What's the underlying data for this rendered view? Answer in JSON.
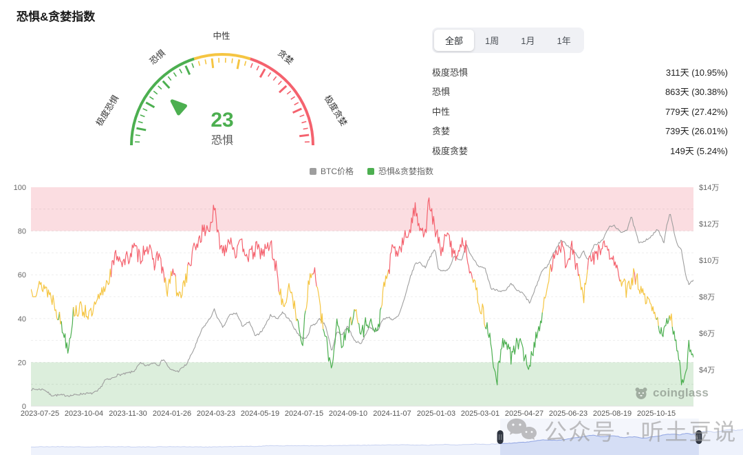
{
  "page": {
    "title": "恐惧&贪婪指数"
  },
  "gauge": {
    "value": 23,
    "value_label": "恐惧",
    "value_color": "#4CAF50",
    "labels": [
      "极度恐惧",
      "恐惧",
      "中性",
      "贪婪",
      "极度贪婪"
    ],
    "segments": [
      {
        "from": 0,
        "to": 40,
        "color": "#4CAF50"
      },
      {
        "from": 40,
        "to": 60,
        "color": "#F5C542"
      },
      {
        "from": 60,
        "to": 100,
        "color": "#F4626E"
      }
    ]
  },
  "stats": {
    "tabs": [
      {
        "label": "全部",
        "active": true
      },
      {
        "label": "1周",
        "active": false
      },
      {
        "label": "1月",
        "active": false
      },
      {
        "label": "1年",
        "active": false
      }
    ],
    "rows": [
      {
        "label": "极度恐惧",
        "value": "311天 (10.95%)"
      },
      {
        "label": "恐惧",
        "value": "863天 (30.38%)"
      },
      {
        "label": "中性",
        "value": "779天 (27.42%)"
      },
      {
        "label": "贪婪",
        "value": "739天 (26.01%)"
      },
      {
        "label": "极度贪婪",
        "value": "149天 (5.24%)"
      }
    ]
  },
  "legend": {
    "items": [
      {
        "label": "BTC价格",
        "color": "#9E9E9E"
      },
      {
        "label": "恐惧&贪婪指数",
        "color": "#4CAF50"
      }
    ]
  },
  "watermarks": {
    "coinglass": "coinglass",
    "wechat": "公众号 · 听土豆说"
  },
  "chart_data": {
    "type": "line",
    "title": "恐惧&贪婪指数 / BTC价格",
    "x_labels": [
      "2023-07-25",
      "2023-10-04",
      "2023-11-30",
      "2024-01-26",
      "2024-03-23",
      "2024-05-19",
      "2024-07-15",
      "2024-09-10",
      "2024-11-07",
      "2025-01-03",
      "2025-03-01",
      "2025-04-27",
      "2025-06-23",
      "2025-08-19",
      "2025-10-15"
    ],
    "left_axis": {
      "ticks": [
        0,
        20,
        40,
        60,
        80,
        100
      ],
      "range": [
        0,
        100
      ],
      "grid": "dashed"
    },
    "right_axis": {
      "range_wan": [
        2,
        14
      ],
      "ticks": [
        {
          "label": "$14万",
          "wan": 14
        },
        {
          "label": "$12万",
          "wan": 12
        },
        {
          "label": "$10万",
          "wan": 10
        },
        {
          "label": "$8万",
          "wan": 8
        },
        {
          "label": "$6万",
          "wan": 6
        },
        {
          "label": "$4万",
          "wan": 4
        }
      ]
    },
    "bands": [
      {
        "from": 80,
        "to": 100,
        "color": "#FBDDE1"
      },
      {
        "from": 0,
        "to": 20,
        "color": "#DCEEDC"
      }
    ],
    "series": [
      {
        "name": "BTC价格",
        "axis": "right",
        "color": "#9E9E9E",
        "unit": "万USD",
        "noise": 0.06,
        "keyframes": [
          [
            0,
            2.92
          ],
          [
            0.02,
            2.92
          ],
          [
            0.03,
            2.6
          ],
          [
            0.046,
            2.6
          ],
          [
            0.06,
            2.58
          ],
          [
            0.082,
            2.7
          ],
          [
            0.09,
            2.68
          ],
          [
            0.1,
            2.8
          ],
          [
            0.105,
            3.0
          ],
          [
            0.112,
            3.45
          ],
          [
            0.119,
            3.45
          ],
          [
            0.13,
            3.7
          ],
          [
            0.14,
            3.75
          ],
          [
            0.155,
            3.9
          ],
          [
            0.165,
            4.35
          ],
          [
            0.175,
            4.2
          ],
          [
            0.185,
            4.4
          ],
          [
            0.193,
            4.25
          ],
          [
            0.2,
            4.6
          ],
          [
            0.21,
            4.0
          ],
          [
            0.222,
            3.9
          ],
          [
            0.235,
            4.3
          ],
          [
            0.247,
            5.2
          ],
          [
            0.258,
            6.2
          ],
          [
            0.27,
            6.8
          ],
          [
            0.277,
            7.3
          ],
          [
            0.282,
            6.8
          ],
          [
            0.29,
            6.3
          ],
          [
            0.3,
            7.0
          ],
          [
            0.31,
            7.1
          ],
          [
            0.319,
            6.4
          ],
          [
            0.33,
            6.6
          ],
          [
            0.339,
            5.8
          ],
          [
            0.35,
            6.2
          ],
          [
            0.362,
            7.0
          ],
          [
            0.372,
            6.8
          ],
          [
            0.38,
            7.15
          ],
          [
            0.393,
            6.6
          ],
          [
            0.4,
            6.1
          ],
          [
            0.41,
            5.7
          ],
          [
            0.417,
            5.8
          ],
          [
            0.423,
            6.4
          ],
          [
            0.429,
            6.5
          ],
          [
            0.436,
            6.8
          ],
          [
            0.445,
            6.4
          ],
          [
            0.454,
            4.95
          ],
          [
            0.462,
            6.1
          ],
          [
            0.47,
            5.9
          ],
          [
            0.478,
            6.4
          ],
          [
            0.488,
            5.6
          ],
          [
            0.498,
            5.4
          ],
          [
            0.51,
            6.3
          ],
          [
            0.523,
            6.1
          ],
          [
            0.53,
            6.7
          ],
          [
            0.54,
            6.9
          ],
          [
            0.546,
            6.7
          ],
          [
            0.555,
            6.95
          ],
          [
            0.565,
            8.0
          ],
          [
            0.571,
            8.9
          ],
          [
            0.58,
            9.8
          ],
          [
            0.586,
            9.9
          ],
          [
            0.595,
            9.6
          ],
          [
            0.601,
            10.1
          ],
          [
            0.61,
            10.6
          ],
          [
            0.615,
            9.5
          ],
          [
            0.619,
            9.4
          ],
          [
            0.63,
            9.5
          ],
          [
            0.639,
            10.2
          ],
          [
            0.65,
            10.0
          ],
          [
            0.657,
            10.9
          ],
          [
            0.665,
            10.2
          ],
          [
            0.676,
            9.6
          ],
          [
            0.685,
            9.6
          ],
          [
            0.695,
            8.4
          ],
          [
            0.702,
            8.4
          ],
          [
            0.71,
            8.3
          ],
          [
            0.716,
            8.3
          ],
          [
            0.725,
            8.7
          ],
          [
            0.735,
            8.3
          ],
          [
            0.742,
            8.2
          ],
          [
            0.753,
            7.65
          ],
          [
            0.762,
            8.5
          ],
          [
            0.771,
            9.4
          ],
          [
            0.78,
            9.7
          ],
          [
            0.789,
            10.4
          ],
          [
            0.8,
            11.1
          ],
          [
            0.807,
            10.9
          ],
          [
            0.817,
            10.6
          ],
          [
            0.827,
            10.1
          ],
          [
            0.834,
            10.5
          ],
          [
            0.841,
            10.0
          ],
          [
            0.85,
            10.8
          ],
          [
            0.863,
            11.1
          ],
          [
            0.872,
            11.8
          ],
          [
            0.881,
            11.9
          ],
          [
            0.89,
            11.5
          ],
          [
            0.9,
            11.7
          ],
          [
            0.906,
            12.4
          ],
          [
            0.918,
            10.9
          ],
          [
            0.927,
            11.1
          ],
          [
            0.937,
            11.3
          ],
          [
            0.945,
            11.7
          ],
          [
            0.95,
            11.4
          ],
          [
            0.955,
            10.9
          ],
          [
            0.96,
            12.0
          ],
          [
            0.965,
            12.6
          ],
          [
            0.973,
            11.1
          ],
          [
            0.982,
            10.5
          ],
          [
            0.988,
            9.2
          ],
          [
            0.993,
            8.7
          ],
          [
            1,
            8.95
          ]
        ]
      },
      {
        "name": "恐惧&贪婪指数",
        "axis": "left",
        "color_by_value": true,
        "noise": 3.8,
        "thresholds": {
          "fear": 40,
          "greed": 60
        },
        "colors": {
          "fear": "#4CAF50",
          "neutral": "#F5C542",
          "greed": "#F4626E"
        },
        "keyframes": [
          [
            0,
            53
          ],
          [
            0.02,
            55
          ],
          [
            0.035,
            48
          ],
          [
            0.046,
            37
          ],
          [
            0.056,
            27
          ],
          [
            0.065,
            44
          ],
          [
            0.082,
            44
          ],
          [
            0.09,
            41
          ],
          [
            0.1,
            47
          ],
          [
            0.105,
            50
          ],
          [
            0.119,
            60
          ],
          [
            0.13,
            70
          ],
          [
            0.14,
            65
          ],
          [
            0.155,
            72
          ],
          [
            0.165,
            68
          ],
          [
            0.175,
            74
          ],
          [
            0.185,
            65
          ],
          [
            0.193,
            70
          ],
          [
            0.205,
            52
          ],
          [
            0.215,
            63
          ],
          [
            0.222,
            48
          ],
          [
            0.235,
            60
          ],
          [
            0.247,
            72
          ],
          [
            0.258,
            79
          ],
          [
            0.27,
            82
          ],
          [
            0.277,
            90
          ],
          [
            0.282,
            78
          ],
          [
            0.29,
            71
          ],
          [
            0.3,
            77
          ],
          [
            0.31,
            70
          ],
          [
            0.319,
            74
          ],
          [
            0.33,
            68
          ],
          [
            0.339,
            72
          ],
          [
            0.35,
            70
          ],
          [
            0.362,
            74
          ],
          [
            0.372,
            60
          ],
          [
            0.38,
            45
          ],
          [
            0.393,
            55
          ],
          [
            0.4,
            40
          ],
          [
            0.41,
            30
          ],
          [
            0.417,
            52
          ],
          [
            0.423,
            60
          ],
          [
            0.429,
            62
          ],
          [
            0.436,
            44
          ],
          [
            0.445,
            30
          ],
          [
            0.454,
            17
          ],
          [
            0.462,
            40
          ],
          [
            0.47,
            28
          ],
          [
            0.478,
            34
          ],
          [
            0.488,
            45
          ],
          [
            0.498,
            33
          ],
          [
            0.51,
            40
          ],
          [
            0.523,
            32
          ],
          [
            0.53,
            50
          ],
          [
            0.54,
            62
          ],
          [
            0.546,
            72
          ],
          [
            0.555,
            70
          ],
          [
            0.565,
            77
          ],
          [
            0.571,
            80
          ],
          [
            0.58,
            90
          ],
          [
            0.586,
            84
          ],
          [
            0.595,
            78
          ],
          [
            0.601,
            94
          ],
          [
            0.61,
            80
          ],
          [
            0.619,
            72
          ],
          [
            0.63,
            78
          ],
          [
            0.639,
            68
          ],
          [
            0.65,
            75
          ],
          [
            0.657,
            72
          ],
          [
            0.665,
            60
          ],
          [
            0.676,
            48
          ],
          [
            0.685,
            40
          ],
          [
            0.695,
            28
          ],
          [
            0.702,
            10
          ],
          [
            0.71,
            25
          ],
          [
            0.716,
            32
          ],
          [
            0.725,
            22
          ],
          [
            0.735,
            30
          ],
          [
            0.742,
            25
          ],
          [
            0.753,
            18
          ],
          [
            0.762,
            32
          ],
          [
            0.771,
            40
          ],
          [
            0.78,
            55
          ],
          [
            0.789,
            70
          ],
          [
            0.8,
            74
          ],
          [
            0.807,
            66
          ],
          [
            0.817,
            72
          ],
          [
            0.827,
            60
          ],
          [
            0.834,
            48
          ],
          [
            0.841,
            65
          ],
          [
            0.85,
            68
          ],
          [
            0.863,
            74
          ],
          [
            0.872,
            70
          ],
          [
            0.881,
            65
          ],
          [
            0.89,
            58
          ],
          [
            0.9,
            52
          ],
          [
            0.91,
            60
          ],
          [
            0.918,
            55
          ],
          [
            0.927,
            48
          ],
          [
            0.937,
            45
          ],
          [
            0.945,
            38
          ],
          [
            0.955,
            34
          ],
          [
            0.965,
            40
          ],
          [
            0.973,
            32
          ],
          [
            0.982,
            12
          ],
          [
            0.988,
            15
          ],
          [
            0.993,
            28
          ],
          [
            1,
            23
          ]
        ]
      }
    ],
    "navigator": {
      "fill": "#DDE5F8",
      "line": "#90A4E3",
      "selection": [
        0.659,
        0.938
      ],
      "noise": 0.008,
      "keyframes": [
        [
          0,
          0.22
        ],
        [
          0.04,
          0.23
        ],
        [
          0.08,
          0.22
        ],
        [
          0.12,
          0.23
        ],
        [
          0.16,
          0.22
        ],
        [
          0.2,
          0.23
        ],
        [
          0.24,
          0.22
        ],
        [
          0.28,
          0.23
        ],
        [
          0.32,
          0.24
        ],
        [
          0.34,
          0.26
        ],
        [
          0.36,
          0.25
        ],
        [
          0.38,
          0.26
        ],
        [
          0.4,
          0.25
        ],
        [
          0.44,
          0.26
        ],
        [
          0.48,
          0.27
        ],
        [
          0.52,
          0.28
        ],
        [
          0.56,
          0.27
        ],
        [
          0.58,
          0.29
        ],
        [
          0.6,
          0.28
        ],
        [
          0.62,
          0.3
        ],
        [
          0.64,
          0.29
        ],
        [
          0.66,
          0.31
        ],
        [
          0.68,
          0.33
        ],
        [
          0.7,
          0.36
        ],
        [
          0.72,
          0.42
        ],
        [
          0.74,
          0.4
        ],
        [
          0.76,
          0.46
        ],
        [
          0.78,
          0.52
        ],
        [
          0.79,
          0.55
        ],
        [
          0.8,
          0.5
        ],
        [
          0.82,
          0.53
        ],
        [
          0.83,
          0.48
        ],
        [
          0.85,
          0.5
        ],
        [
          0.86,
          0.46
        ],
        [
          0.88,
          0.52
        ],
        [
          0.9,
          0.58
        ],
        [
          0.91,
          0.55
        ],
        [
          0.92,
          0.6
        ],
        [
          0.93,
          0.56
        ],
        [
          0.94,
          0.62
        ],
        [
          0.95,
          0.66
        ],
        [
          0.96,
          0.62
        ],
        [
          0.97,
          0.66
        ],
        [
          0.98,
          0.7
        ],
        [
          0.99,
          0.67
        ],
        [
          1,
          0.7
        ]
      ]
    }
  }
}
